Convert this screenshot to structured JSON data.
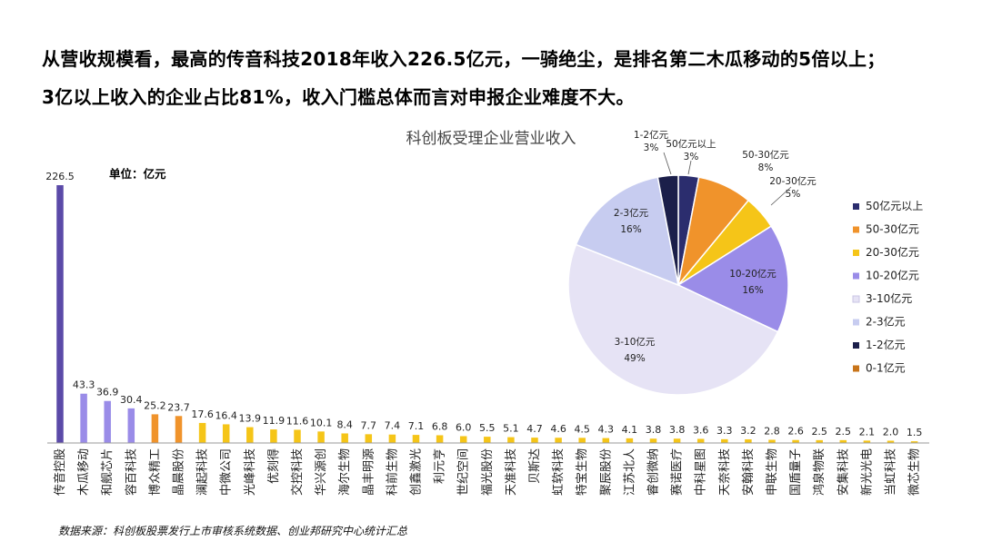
{
  "headline": {
    "line1": "从营收规模看，最高的传音科技2018年收入226.5亿元，一骑绝尘，是排名第二木瓜移动的5倍以上；",
    "line2": "3亿以上收入的企业占比81%，收入门槛总体而言对申报企业难度不大。"
  },
  "unit_label": "单位：亿元",
  "source_note": "数据来源：科创板股票发行上市审核系统数据、创业邦研究中心统计汇总",
  "chart_data": [
    {
      "type": "bar",
      "title": "",
      "categories": [
        "传音控股",
        "木瓜移动",
        "和舰芯片",
        "容百科技",
        "博众精工",
        "晶晨股份",
        "澜起科技",
        "中微公司",
        "光峰科技",
        "优刻得",
        "交控科技",
        "华兴源创",
        "海尔生物",
        "晶丰明源",
        "科前生物",
        "创鑫激光",
        "利元亨",
        "世纪空间",
        "福光股份",
        "天准科技",
        "贝斯达",
        "虹软科技",
        "特宝生物",
        "聚辰股份",
        "江苏北人",
        "睿创微纳",
        "赛诺医疗",
        "中科星图",
        "天奈科技",
        "安翰科技",
        "申联生物",
        "国盾量子",
        "鸿泉物联",
        "安集科技",
        "新光光电",
        "当虹科技",
        "微芯生物"
      ],
      "values": [
        226.5,
        43.3,
        36.9,
        30.4,
        25.2,
        23.7,
        17.6,
        16.4,
        13.9,
        11.9,
        11.6,
        10.1,
        8.4,
        7.7,
        7.4,
        7.1,
        6.8,
        6.0,
        5.5,
        5.1,
        4.7,
        4.6,
        4.5,
        4.3,
        4.1,
        3.8,
        3.8,
        3.6,
        3.3,
        3.2,
        2.8,
        2.6,
        2.5,
        2.5,
        2.1,
        2.0,
        1.5
      ],
      "bar_colors": [
        "#5b4aa8",
        "#9a8ce8",
        "#9a8ce8",
        "#9a8ce8",
        "#f0932b",
        "#f0932b",
        "#f5c518",
        "#f5c518",
        "#f5c518",
        "#f5c518",
        "#f5c518",
        "#f5c518",
        "#f5c518",
        "#f5c518",
        "#f5c518",
        "#f5c518",
        "#f5c518",
        "#f5c518",
        "#f5c518",
        "#f5c518",
        "#f5c518",
        "#f5c518",
        "#f5c518",
        "#f5c518",
        "#f5c518",
        "#f5c518",
        "#f5c518",
        "#f5c518",
        "#f5c518",
        "#f5c518",
        "#f5c518",
        "#f5c518",
        "#f5c518",
        "#f5c518",
        "#f5c518",
        "#f5c518",
        "#f5c518"
      ],
      "ylim": [
        0,
        226.5
      ],
      "grid": false
    },
    {
      "type": "pie",
      "title": "科创板受理企业营业收入",
      "slices": [
        {
          "name": "50亿元以上",
          "value": 3,
          "label": "3%",
          "color": "#2b2d6e"
        },
        {
          "name": "50-30亿元",
          "value": 8,
          "label": "8%",
          "color": "#f0932b"
        },
        {
          "name": "20-30亿元",
          "value": 5,
          "label": "5%",
          "color": "#f5c518"
        },
        {
          "name": "10-20亿元",
          "value": 16,
          "label": "16%",
          "color": "#9a8ce8"
        },
        {
          "name": "3-10亿元",
          "value": 49,
          "label": "49%",
          "color": "#e6e3f5"
        },
        {
          "name": "2-3亿元",
          "value": 16,
          "label": "16%",
          "color": "#c7ccf0"
        },
        {
          "name": "1-2亿元",
          "value": 3,
          "label": "3%",
          "color": "#1b1f4a"
        }
      ],
      "slice_labels": {
        "50亿元以上": "50亿元以上",
        "50-30亿元": "50-30亿元",
        "20-30亿元": "20-30亿元",
        "10-20亿元": "10-20亿元",
        "3-10亿元": "3-10亿元",
        "2-3亿元": "2-3亿元",
        "1-2亿元": "1-2亿元"
      },
      "legend": {
        "position": "right",
        "entries": [
          {
            "name": "50亿元以上",
            "color": "#2b2d6e"
          },
          {
            "name": "50-30亿元",
            "color": "#f0932b"
          },
          {
            "name": "20-30亿元",
            "color": "#f5c518"
          },
          {
            "name": "10-20亿元",
            "color": "#9a8ce8"
          },
          {
            "name": "3-10亿元",
            "color": "#e6e3f5"
          },
          {
            "name": "2-3亿元",
            "color": "#c7ccf0"
          },
          {
            "name": "1-2亿元",
            "color": "#1b1f4a"
          },
          {
            "name": "0-1亿元",
            "color": "#c8741a"
          }
        ]
      }
    }
  ]
}
